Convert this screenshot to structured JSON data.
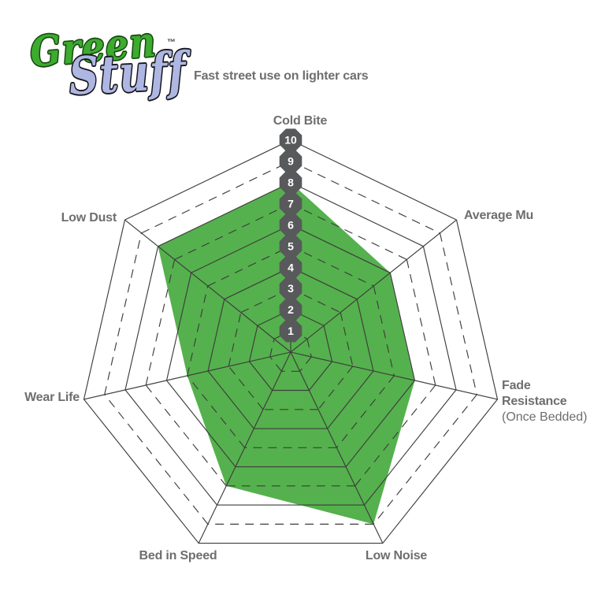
{
  "header": {
    "logo": {
      "green": "Green",
      "stuff": "Stuff",
      "trademark": "™"
    },
    "tagline": "Fast street use on lighter cars"
  },
  "chart_data": {
    "type": "radar",
    "title": "Fast street use on lighter cars",
    "categories": [
      "Cold Bite",
      "Average Mu",
      "Fade Resistance",
      "Low Noise",
      "Bed in Speed",
      "Wear Life",
      "Low Dust"
    ],
    "category_sublabels": {
      "2": "(Once Bedded)"
    },
    "values": [
      8,
      6,
      6,
      9,
      7,
      5,
      8
    ],
    "scale": {
      "min": 0,
      "max": 10,
      "ring_step": 1,
      "tick_labels": [
        "1",
        "2",
        "3",
        "4",
        "5",
        "6",
        "7",
        "8",
        "9",
        "10"
      ]
    },
    "grid": {
      "rings": 10,
      "solid_rings": [
        2,
        4,
        6,
        8,
        10
      ],
      "dashed_rings": [
        1,
        3,
        5,
        7,
        9
      ],
      "spokes": true,
      "axis_order": "clockwise-from-top"
    },
    "colors": {
      "fill": "#55b14d",
      "grid": "#3d3d3d",
      "badge": "#58595b",
      "badge_text": "#ffffff",
      "label": "#6d6e70"
    }
  }
}
